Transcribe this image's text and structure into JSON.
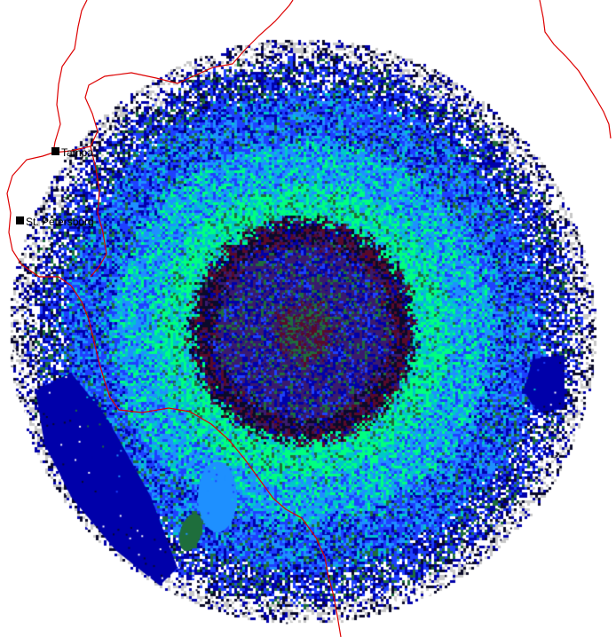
{
  "map": {
    "cities": [
      {
        "name": "Tampa",
        "marker": "square-marker"
      },
      {
        "name": "St. Petersburg",
        "marker": "square-marker"
      }
    ],
    "colors": {
      "background": "#ffffff",
      "border_lines": "#dd0000",
      "city_marker": "#000000",
      "reflectivity_scale": [
        "#ffffff",
        "#c8c8c8",
        "#0a0a2a",
        "#0000aa",
        "#1e40ff",
        "#1e90ff",
        "#00c8c8",
        "#00ff80",
        "#1e6e3c",
        "#3a1a6e",
        "#5a0a2a"
      ]
    }
  }
}
